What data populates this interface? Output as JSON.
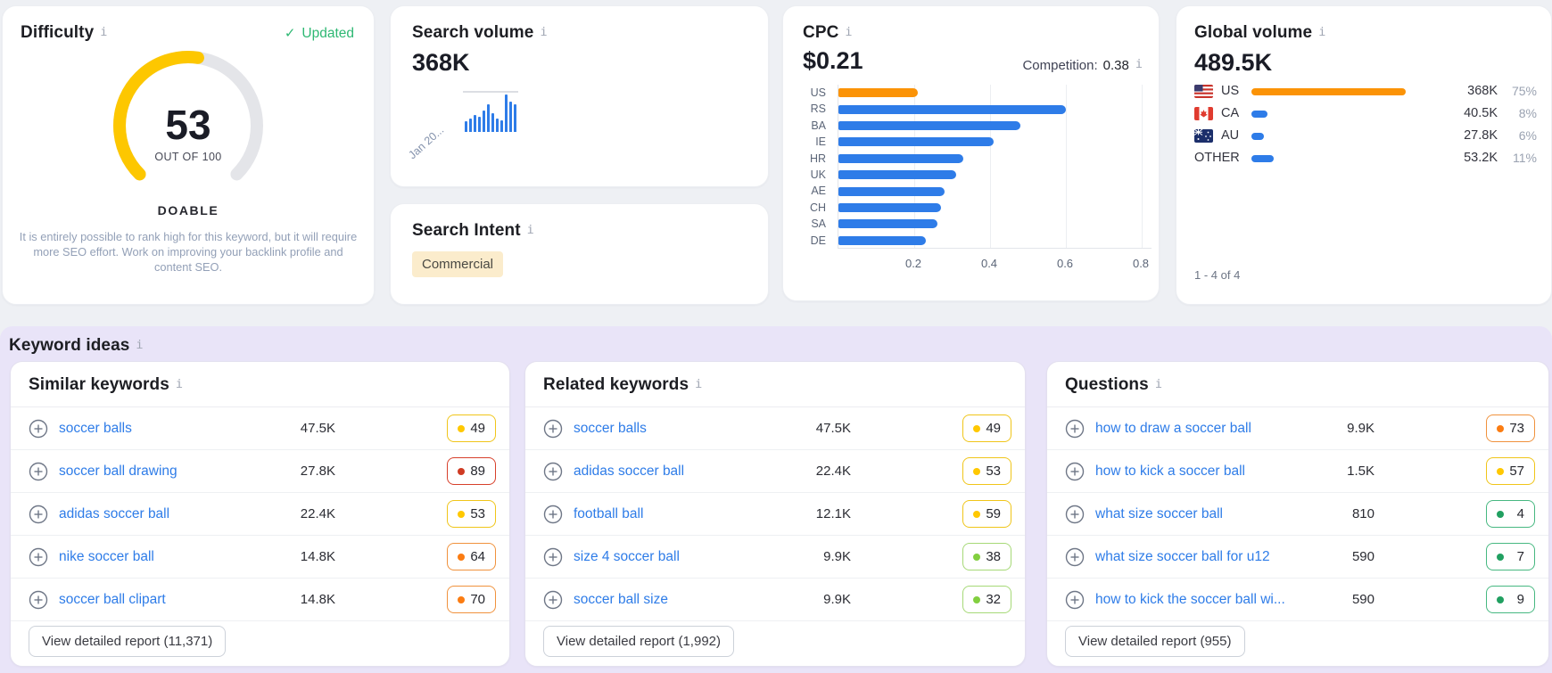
{
  "difficulty": {
    "title": "Difficulty",
    "updated": "Updated",
    "score": 53,
    "score_display": "53",
    "out_of_label": "OUT OF 100",
    "verdict": "DOABLE",
    "description": "It is entirely possible to rank high for this keyword, but it will require more SEO effort. Work on improving your backlink profile and content SEO.",
    "colors": {
      "arc": "#fdc700",
      "track": "#e4e5e9",
      "updated_green": "#2eb873"
    }
  },
  "search_volume": {
    "title": "Search volume",
    "value": "368K",
    "trend_label": "Jan 20...",
    "chart_data": {
      "type": "bar",
      "title": "Monthly search volume trend (sparkline)",
      "values_percent": [
        28,
        36,
        46,
        40,
        58,
        74,
        50,
        36,
        30,
        100,
        82,
        74
      ],
      "color": "#2e7ce8"
    }
  },
  "search_intent": {
    "title": "Search Intent",
    "value": "Commercial",
    "badge_bg": "#fbeccc"
  },
  "cpc": {
    "title": "CPC",
    "value": "$0.21",
    "competition_label": "Competition:",
    "competition_value": "0.38",
    "chart_data": {
      "type": "bar",
      "orientation": "horizontal",
      "title": "CPC by country",
      "categories": [
        "US",
        "RS",
        "BA",
        "IE",
        "HR",
        "UK",
        "AE",
        "CH",
        "SA",
        "DE"
      ],
      "values": [
        0.21,
        0.6,
        0.48,
        0.41,
        0.33,
        0.31,
        0.28,
        0.27,
        0.26,
        0.23
      ],
      "x_ticks": [
        "0.2",
        "0.4",
        "0.6",
        "0.8"
      ],
      "xlim": [
        0,
        0.83
      ],
      "grid": true,
      "highlight_index": 0,
      "highlight_color": "#fb9307",
      "bar_color": "#2e7ce8"
    }
  },
  "global_volume": {
    "title": "Global volume",
    "value": "489.5K",
    "chart_data": {
      "type": "bar",
      "orientation": "horizontal",
      "title": "Volume share by country",
      "categories": [
        "US",
        "CA",
        "AU",
        "OTHER"
      ],
      "values": [
        "368K",
        "40.5K",
        "27.8K",
        "53.2K"
      ],
      "shares_percent": [
        75,
        8,
        6,
        11
      ]
    },
    "rows": [
      {
        "code": "US",
        "value": "368K",
        "percent": "75%",
        "share": 75,
        "color": "#fb9307"
      },
      {
        "code": "CA",
        "value": "40.5K",
        "percent": "8%",
        "share": 8,
        "color": "#2e7ce8"
      },
      {
        "code": "AU",
        "value": "27.8K",
        "percent": "6%",
        "share": 6,
        "color": "#2e7ce8"
      },
      {
        "code": "OTHER",
        "value": "53.2K",
        "percent": "11%",
        "share": 11,
        "color": "#2e7ce8"
      }
    ],
    "pagination": "1 - 4 of 4"
  },
  "keyword_ideas": {
    "title": "Keyword ideas",
    "kd_colors": {
      "green": "#21a061",
      "lightgreen": "#82cf3f",
      "yellow": "#ffc801",
      "orange": "#fb7c12",
      "red": "#cf3b23"
    },
    "columns": [
      {
        "title": "Similar keywords",
        "items": [
          {
            "keyword": "soccer balls",
            "volume": "47.5K",
            "kd": "49",
            "kd_level": "yellow"
          },
          {
            "keyword": "soccer ball drawing",
            "volume": "27.8K",
            "kd": "89",
            "kd_level": "red"
          },
          {
            "keyword": "adidas soccer ball",
            "volume": "22.4K",
            "kd": "53",
            "kd_level": "yellow"
          },
          {
            "keyword": "nike soccer ball",
            "volume": "14.8K",
            "kd": "64",
            "kd_level": "orange"
          },
          {
            "keyword": "soccer ball clipart",
            "volume": "14.8K",
            "kd": "70",
            "kd_level": "orange"
          }
        ],
        "footer": "View detailed report (11,371)"
      },
      {
        "title": "Related keywords",
        "items": [
          {
            "keyword": "soccer balls",
            "volume": "47.5K",
            "kd": "49",
            "kd_level": "yellow"
          },
          {
            "keyword": "adidas soccer ball",
            "volume": "22.4K",
            "kd": "53",
            "kd_level": "yellow"
          },
          {
            "keyword": "football ball",
            "volume": "12.1K",
            "kd": "59",
            "kd_level": "yellow"
          },
          {
            "keyword": "size 4 soccer ball",
            "volume": "9.9K",
            "kd": "38",
            "kd_level": "lightgreen"
          },
          {
            "keyword": "soccer ball size",
            "volume": "9.9K",
            "kd": "32",
            "kd_level": "lightgreen"
          }
        ],
        "footer": "View detailed report (1,992)"
      },
      {
        "title": "Questions",
        "items": [
          {
            "keyword": "how to draw a soccer ball",
            "volume": "9.9K",
            "kd": "73",
            "kd_level": "orange"
          },
          {
            "keyword": "how to kick a soccer ball",
            "volume": "1.5K",
            "kd": "57",
            "kd_level": "yellow"
          },
          {
            "keyword": "what size soccer ball",
            "volume": "810",
            "kd": "4",
            "kd_level": "green"
          },
          {
            "keyword": "what size soccer ball for u12",
            "volume": "590",
            "kd": "7",
            "kd_level": "green"
          },
          {
            "keyword": "how to kick the soccer ball wi...",
            "volume": "590",
            "kd": "9",
            "kd_level": "green"
          }
        ],
        "footer": "View detailed report (955)"
      }
    ]
  }
}
